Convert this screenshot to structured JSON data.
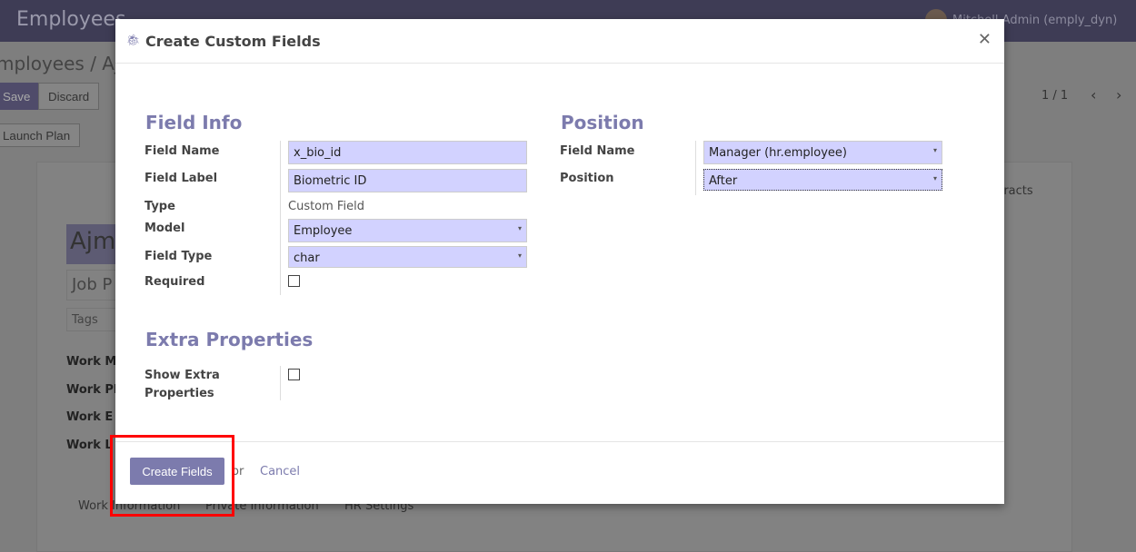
{
  "app": {
    "title": "Employees",
    "user": "Mitchell Admin (emply_dyn)"
  },
  "background": {
    "breadcrumb": "mployees / Ajm",
    "save": "Save",
    "discard": "Discard",
    "launch_plan": "Launch Plan",
    "pager": "1 / 1",
    "name": "Ajm",
    "job": "Job P",
    "tags": "Tags",
    "labels": [
      "Work M",
      "Work Pl",
      "Work E",
      "Work L"
    ],
    "tabs": [
      "Work Information",
      "Private Information",
      "HR Settings"
    ],
    "contracts": "ntracts"
  },
  "modal": {
    "title": "Create Custom Fields",
    "field_info": {
      "heading": "Field Info",
      "field_name_label": "Field Name",
      "field_name": "x_bio_id",
      "field_label_label": "Field Label",
      "field_label": "Biometric ID",
      "type_label": "Type",
      "type": "Custom Field",
      "model_label": "Model",
      "model": "Employee",
      "field_type_label": "Field Type",
      "field_type": "char",
      "required_label": "Required",
      "required": false
    },
    "position": {
      "heading": "Position",
      "field_name_label": "Field Name",
      "field_name": "Manager (hr.employee)",
      "position_label": "Position",
      "position": "After"
    },
    "extra": {
      "heading": "Extra Properties",
      "show_label_1": "Show Extra",
      "show_label_2": "Properties",
      "show": false
    },
    "footer": {
      "create": "Create Fields",
      "or": "or",
      "cancel": "Cancel"
    }
  },
  "colors": {
    "accent": "#7c7bad",
    "highlight": "#ff0000"
  }
}
